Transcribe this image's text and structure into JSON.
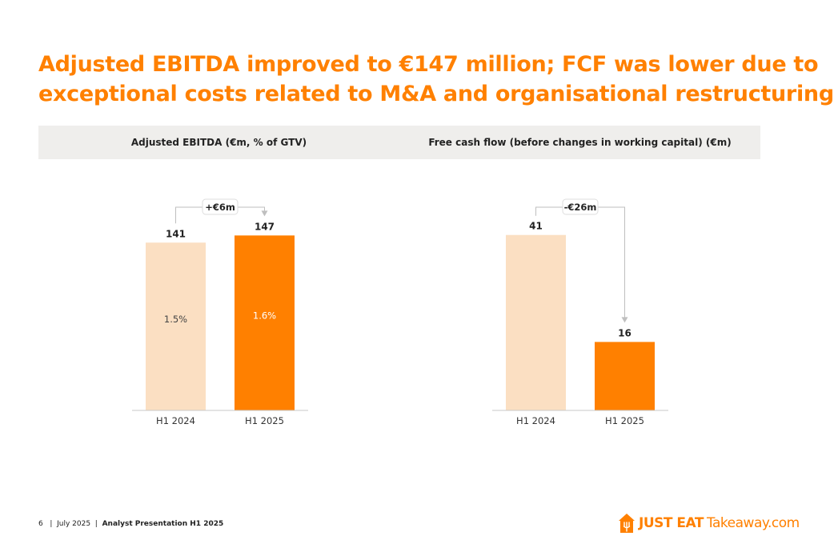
{
  "title": {
    "line1": "Adjusted EBITDA improved to €147 million; FCF was lower due to",
    "line2": "exceptional costs related to M&A and organisational restructuring"
  },
  "colors": {
    "accent": "#ff8000",
    "bar_light": "#fbdfc2",
    "band": "#efeeec"
  },
  "chart_data": [
    {
      "type": "bar",
      "title": "Adjusted EBITDA (€m, % of GTV)",
      "categories": [
        "H1 2024",
        "H1 2025"
      ],
      "values": [
        141,
        147
      ],
      "value_labels": [
        "141",
        "147"
      ],
      "inner_labels": [
        "1.5%",
        "1.6%"
      ],
      "annotation": "+€6m",
      "bar_colors": [
        "#fbdfc2",
        "#ff8000"
      ],
      "ylim": [
        0,
        160
      ],
      "grid": false
    },
    {
      "type": "bar",
      "title": "Free cash flow (before changes in working capital) (€m)",
      "categories": [
        "H1 2024",
        "H1 2025"
      ],
      "values": [
        41,
        16
      ],
      "value_labels": [
        "41",
        "16"
      ],
      "inner_labels": [
        "",
        ""
      ],
      "annotation": "-€26m",
      "bar_colors": [
        "#fbdfc2",
        "#ff8000"
      ],
      "ylim": [
        0,
        44.5
      ],
      "grid": false
    }
  ],
  "footer": {
    "page": "6",
    "date": "July 2025",
    "doc": "Analyst Presentation H1 2025"
  },
  "logo": {
    "main": "JUST EAT",
    "sub": "Takeaway.com",
    "icon": "house-fork-icon"
  }
}
